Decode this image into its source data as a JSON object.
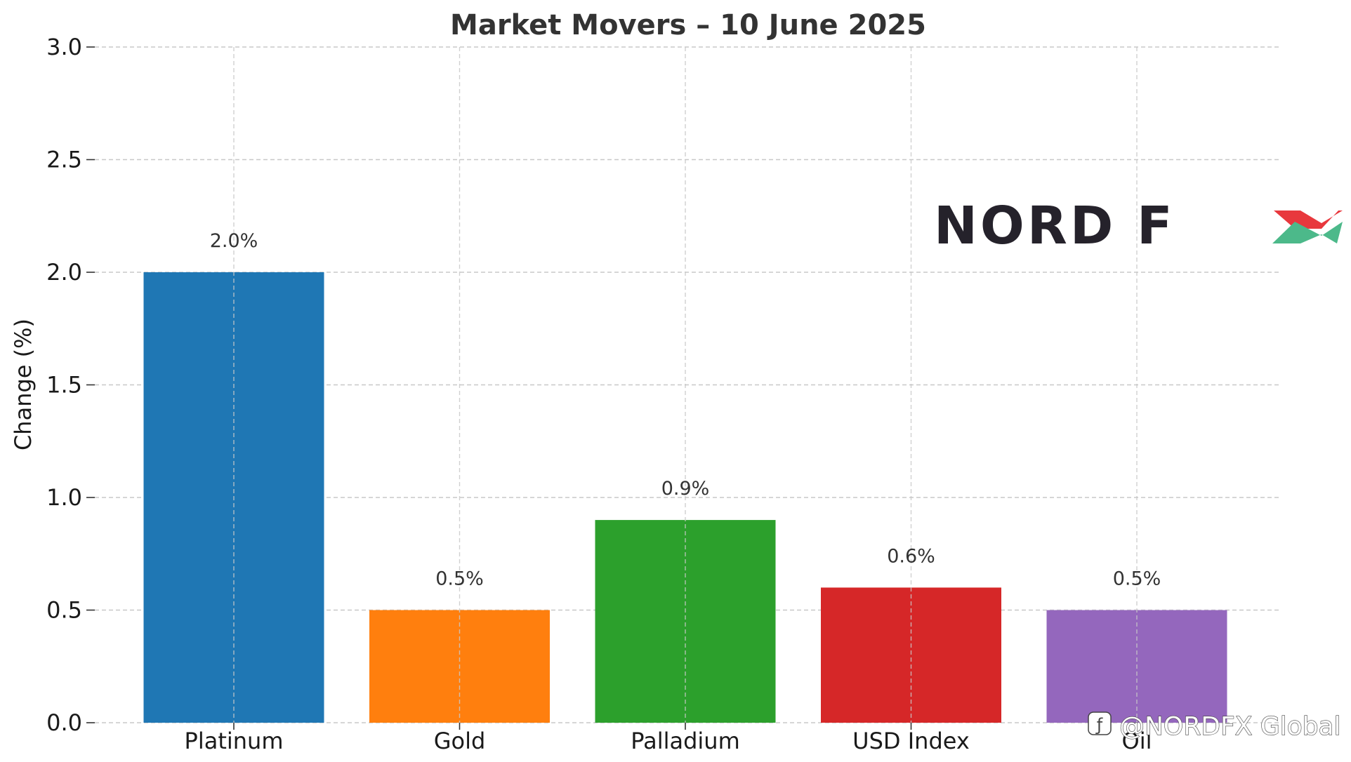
{
  "chart_data": {
    "type": "bar",
    "title": "Market Movers – 10 June 2025",
    "xlabel": "",
    "ylabel": "Change (%)",
    "categories": [
      "Platinum",
      "Gold",
      "Palladium",
      "USD Index",
      "Oil"
    ],
    "values": [
      2.0,
      0.5,
      0.9,
      0.6,
      0.5
    ],
    "data_labels": [
      "2.0%",
      "0.5%",
      "0.9%",
      "0.6%",
      "0.5%"
    ],
    "colors": [
      "#1f77b4",
      "#ff7f0e",
      "#2ca02c",
      "#d62728",
      "#9467bd"
    ],
    "ylim": [
      0,
      3.0
    ],
    "yticks": [
      "0.0",
      "0.5",
      "1.0",
      "1.5",
      "2.0",
      "2.5",
      "3.0"
    ],
    "grid": true,
    "legend": "none"
  },
  "watermark": {
    "logo_text": "NORD FX",
    "logo_x_colors": [
      "#e8383d",
      "#4cb98a"
    ],
    "handle": "@NORDFX Global"
  }
}
